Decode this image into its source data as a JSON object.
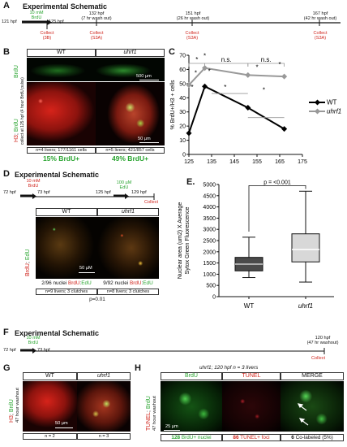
{
  "panelA": {
    "letter": "A",
    "title": "Experimental Schematic",
    "brdu": "10 mM\nBrdU",
    "t_start": "121 hpf",
    "t_end_pulse": "125 hpf",
    "times": [
      {
        "t": "132 hpf",
        "sub": "(7 hr wash out)",
        "c1": "Collect",
        "c2": "(S3A)"
      },
      {
        "t": "151 hpf",
        "sub": "(26 hr wash out)",
        "c1": "Collect",
        "c2": "(S3A)"
      },
      {
        "t": "167 hpf",
        "sub": "(42 hr wash out)",
        "c1": "Collect",
        "c2": "(S3A)"
      }
    ],
    "first_collect": {
      "c1": "Collect",
      "c2": "(3B)"
    }
  },
  "panelB": {
    "letter": "B",
    "wt": "WT",
    "mut": "uhrf1",
    "row1_label": "BrdU",
    "row2_label_red": "H3",
    "row2_label_green": "BrdU",
    "row2_side": "collect at 125 hpf (4 hour BrdU pulse)",
    "scale_top": "500 µm",
    "scale_bottom": "50 µm",
    "wt_stats": "n=4 livers; 177/1161 cells",
    "mut_stats": "n=5 livers; 421/857 cells",
    "wt_pct": "15% BrdU+",
    "mut_pct": "49% BrdU+"
  },
  "panelC": {
    "letter": "C",
    "chart_data": {
      "type": "line",
      "ylabel": "% BrdU+/H3 + cells",
      "ylim": [
        0,
        70
      ],
      "xlim": [
        125,
        175
      ],
      "yticks": [
        0,
        10,
        20,
        30,
        40,
        50,
        60,
        70
      ],
      "xticks": [
        125,
        135,
        145,
        155,
        165,
        175
      ],
      "series": [
        {
          "name": "WT",
          "color": "#000000",
          "x": [
            125,
            132,
            151,
            167
          ],
          "y": [
            15,
            48,
            33,
            18
          ]
        },
        {
          "name": "uhrf1",
          "color": "#999999",
          "x": [
            125,
            132,
            151,
            167
          ],
          "y": [
            49,
            61,
            56,
            55
          ]
        }
      ],
      "legend_position": "right",
      "annotations": [
        "*",
        "*",
        "n.s.",
        "n.s.",
        "*",
        "*",
        "*",
        "*",
        "*",
        "*"
      ]
    }
  },
  "panelD": {
    "letter": "D",
    "title": "Experimental Schematic",
    "brdu": "10 mM\nBrdU",
    "edu": "100 µM\nEdU",
    "t1": "72 hpf",
    "t2": "73 hpf",
    "t3": "125 hpf",
    "t4": "129 hpf",
    "collect": "Collect",
    "wt": "WT",
    "mut": "uhrf1",
    "side_red": "BrdU",
    "side_green": "EdU",
    "scale": "50 µM",
    "wt_nuc_a": "2/96 nuclei ",
    "wt_nuc_r": "BrdU",
    "wt_nuc_c": ":",
    "wt_nuc_g": "EdU",
    "mut_nuc_a": "9/92 nuclei ",
    "mut_nuc_r": "BrdU",
    "mut_nuc_c": ":",
    "mut_nuc_g": "EdU",
    "wt_n": "n=9 livers; 3 clutches",
    "mut_n": "n=8 livers; 3 clutches",
    "p": "p=0.01"
  },
  "panelE": {
    "letter": "E.",
    "chart_data": {
      "type": "box",
      "ylabel": "Nuclear area (um2) X Average\nSytox Green Fluorescence",
      "ylim": [
        0,
        5000
      ],
      "yticks": [
        0,
        500,
        1000,
        1500,
        2000,
        2500,
        3000,
        3500,
        4000,
        4500,
        5000
      ],
      "categories": [
        "WT",
        "uhrf1"
      ],
      "boxes": [
        {
          "name": "WT",
          "min": 850,
          "q1": 1150,
          "median": 1450,
          "q3": 1750,
          "max": 2650
        },
        {
          "name": "uhrf1",
          "min": 650,
          "q1": 1550,
          "median": 2100,
          "q3": 2800,
          "max": 4700
        }
      ],
      "pvalue": "p = <0.001"
    }
  },
  "panelF": {
    "letter": "F",
    "title": "Experimental Schematic",
    "brdu": "10 mM\nBrdU",
    "t1": "72 hpf",
    "t2": "73 hpf",
    "end": "120 hpf\n(47 hr washout)",
    "collect": "Collect"
  },
  "panelG": {
    "letter": "G",
    "wt": "WT",
    "mut": "uhrf1",
    "side_red": "H3",
    "side_green": "BrdU",
    "side_sub": "47 hour washout",
    "scale": "50 µm",
    "wt_n": "n = 2",
    "mut_n": "n = 3"
  },
  "panelH": {
    "letter": "H",
    "title": "uhrf1; 120 hpf   n = 3 livers",
    "col1": "BrdU",
    "col2": "TUNEL",
    "col3": "MERGE",
    "side_red": "TUNEL",
    "side_green": "BrdU",
    "side_sub": "47 hour washout",
    "scale": "25 µm",
    "c1_n": "128",
    "c1_t": " BrdU+ nuclei",
    "c2_n": "86",
    "c2_t": " TUNEL+ foci",
    "c3_n": "6",
    "c3_t": " Co-labeled (5%)"
  }
}
